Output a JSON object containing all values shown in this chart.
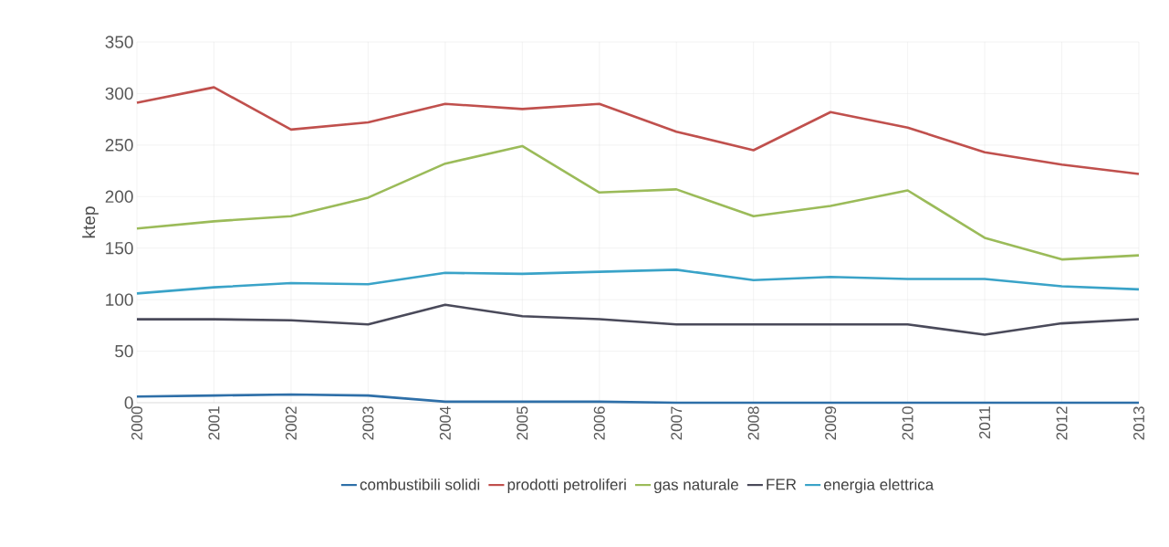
{
  "chart_data": {
    "type": "line",
    "ylabel": "ktep",
    "categories": [
      "2000",
      "2001",
      "2002",
      "2003",
      "2004",
      "2005",
      "2006",
      "2007",
      "2008",
      "2009",
      "2010",
      "2011",
      "2012",
      "2013"
    ],
    "series": [
      {
        "name": "combustibili solidi",
        "color": "#2e6fa8",
        "values": [
          6,
          7,
          8,
          7,
          1,
          1,
          1,
          0,
          0,
          0,
          0,
          0,
          0,
          0
        ]
      },
      {
        "name": "prodotti petroliferi",
        "color": "#c0504d",
        "values": [
          291,
          306,
          265,
          272,
          290,
          285,
          290,
          263,
          245,
          282,
          267,
          243,
          231,
          222
        ]
      },
      {
        "name": "gas naturale",
        "color": "#9bbb59",
        "values": [
          169,
          176,
          181,
          199,
          232,
          249,
          204,
          207,
          181,
          191,
          206,
          160,
          139,
          143
        ]
      },
      {
        "name": "FER",
        "color": "#4a4a5a",
        "values": [
          81,
          81,
          80,
          76,
          95,
          84,
          81,
          76,
          76,
          76,
          76,
          66,
          77,
          81
        ]
      },
      {
        "name": "energia elettrica",
        "color": "#3aa3c8",
        "values": [
          106,
          112,
          116,
          115,
          126,
          125,
          127,
          129,
          119,
          122,
          120,
          120,
          113,
          110
        ]
      }
    ],
    "ylim": [
      0,
      350
    ],
    "yticks": [
      0,
      50,
      100,
      150,
      200,
      250,
      300,
      350
    ],
    "grid": true,
    "legend": "bottom",
    "marker": "none",
    "line_style": "solid"
  }
}
